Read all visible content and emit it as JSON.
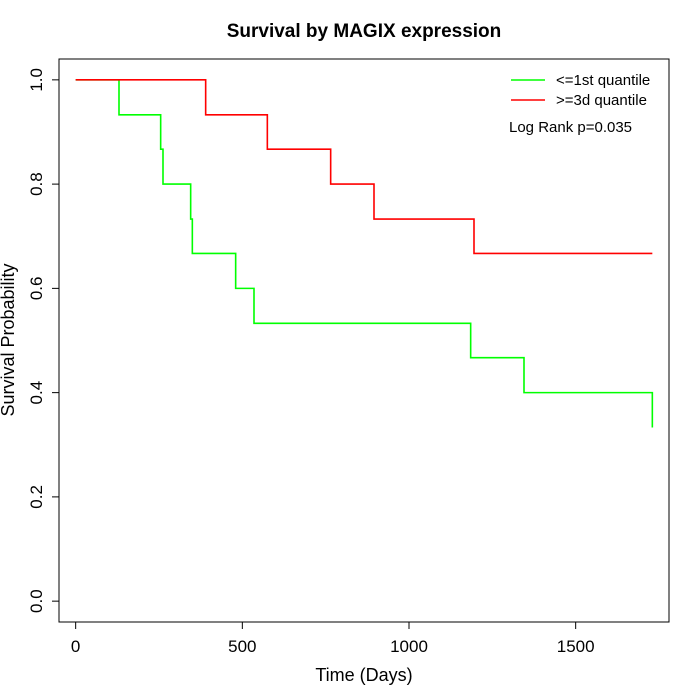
{
  "chart_data": {
    "type": "line",
    "title": "Survival by MAGIX expression",
    "xlabel": "Time (Days)",
    "ylabel": "Survival Probability",
    "xlim": [
      -50,
      1780
    ],
    "ylim": [
      -0.04,
      1.04
    ],
    "x_ticks": [
      0,
      500,
      1000,
      1500
    ],
    "y_ticks": [
      0.0,
      0.2,
      0.4,
      0.6,
      0.8,
      1.0
    ],
    "y_tick_labels": [
      "0.0",
      "0.2",
      "0.4",
      "0.6",
      "0.8",
      "1.0"
    ],
    "grid": false,
    "legend_position": "top-right",
    "annotation": "Log Rank p=0.035",
    "series": [
      {
        "name": "<=1st quantile",
        "color": "#00ff00",
        "step": true,
        "x": [
          0,
          130,
          255,
          262,
          345,
          350,
          480,
          535,
          1185,
          1345,
          1730
        ],
        "y": [
          1.0,
          0.933,
          0.867,
          0.8,
          0.733,
          0.667,
          0.6,
          0.533,
          0.467,
          0.4,
          0.333
        ]
      },
      {
        "name": ">=3d quantile",
        "color": "#ff0000",
        "step": true,
        "x": [
          0,
          390,
          575,
          765,
          895,
          1195,
          1730
        ],
        "y": [
          1.0,
          0.933,
          0.867,
          0.8,
          0.733,
          0.667,
          0.667
        ]
      }
    ]
  }
}
